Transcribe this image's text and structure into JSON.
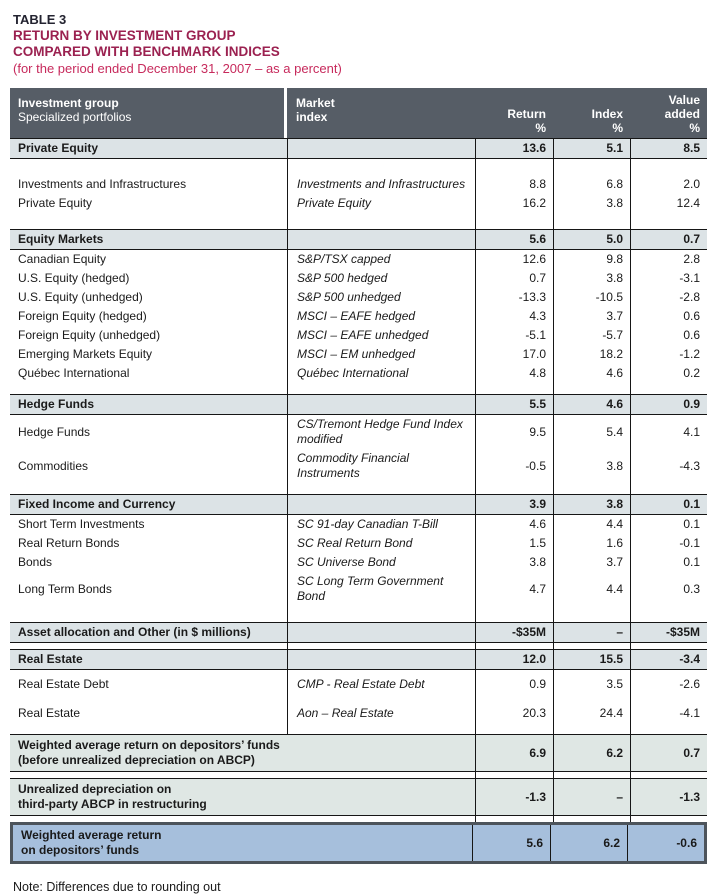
{
  "colors": {
    "header_bg": "#565d66",
    "section_row_bg": "#dce3e6",
    "summary_row_bg": "#dfe7e4",
    "final_row_bg": "#a6bfdc",
    "final_row_border": "#4d545b",
    "title_maroon": "#9b2150",
    "subtitle_crimson": "#c72a5c"
  },
  "title": {
    "table_number": "TABLE 3",
    "line1": "RETURN BY INVESTMENT GROUP",
    "line2": "COMPARED WITH BENCHMARK INDICES",
    "subtitle": "(for the period ended December 31, 2007 – as a percent)"
  },
  "table": {
    "columns": {
      "group_title": "Investment group",
      "group_sub": "Specialized portfolios",
      "market_line1": "Market",
      "market_line2": "index",
      "return_label": "Return",
      "index_label": "Index",
      "value_line1": "Value",
      "value_line2": "added",
      "percent": "%"
    },
    "rows": [
      {
        "type": "section",
        "label": "Private Equity",
        "index": "",
        "ret": "13.6",
        "idx": "5.1",
        "va": "8.5"
      },
      {
        "type": "gap",
        "size": "l"
      },
      {
        "type": "data",
        "label": "Investments and Infrastructures",
        "index": "Investments and Infrastructures",
        "ret": "8.8",
        "idx": "6.8",
        "va": "2.0"
      },
      {
        "type": "data",
        "label": "Private Equity",
        "index": "Private Equity",
        "ret": "16.2",
        "idx": "3.8",
        "va": "12.4"
      },
      {
        "type": "gap",
        "size": "l"
      },
      {
        "type": "section",
        "label": "Equity Markets",
        "index": "",
        "ret": "5.6",
        "idx": "5.0",
        "va": "0.7"
      },
      {
        "type": "data",
        "label": "Canadian Equity",
        "index": "S&P/TSX capped",
        "ret": "12.6",
        "idx": "9.8",
        "va": "2.8"
      },
      {
        "type": "data",
        "label": "U.S. Equity (hedged)",
        "index": "S&P 500 hedged",
        "ret": "0.7",
        "idx": "3.8",
        "va": "-3.1"
      },
      {
        "type": "data",
        "label": "U.S. Equity (unhedged)",
        "index": "S&P 500 unhedged",
        "ret": "-13.3",
        "idx": "-10.5",
        "va": "-2.8"
      },
      {
        "type": "data",
        "label": "Foreign Equity (hedged)",
        "index": "MSCI – EAFE hedged",
        "ret": "4.3",
        "idx": "3.7",
        "va": "0.6"
      },
      {
        "type": "data",
        "label": "Foreign Equity (unhedged)",
        "index": "MSCI – EAFE unhedged",
        "ret": "-5.1",
        "idx": "-5.7",
        "va": "0.6"
      },
      {
        "type": "data",
        "label": "Emerging Markets Equity",
        "index": "MSCI – EM unhedged",
        "ret": "17.0",
        "idx": "18.2",
        "va": "-1.2"
      },
      {
        "type": "data",
        "label": "Québec International",
        "index": "Québec International",
        "ret": "4.8",
        "idx": "4.6",
        "va": "0.2"
      },
      {
        "type": "gap",
        "size": "m"
      },
      {
        "type": "section",
        "label": "Hedge Funds",
        "index": "",
        "ret": "5.5",
        "idx": "4.6",
        "va": "0.9"
      },
      {
        "type": "data",
        "tall": true,
        "label": "Hedge Funds",
        "index": "CS/Tremont Hedge Fund Index modified",
        "ret": "9.5",
        "idx": "5.4",
        "va": "4.1"
      },
      {
        "type": "data",
        "tall": true,
        "label": "Commodities",
        "index": "Commodity Financial Instruments",
        "ret": "-0.5",
        "idx": "3.8",
        "va": "-4.3"
      },
      {
        "type": "gap",
        "size": "m"
      },
      {
        "type": "section",
        "label": "Fixed Income and Currency",
        "index": "",
        "ret": "3.9",
        "idx": "3.8",
        "va": "0.1"
      },
      {
        "type": "data",
        "label": "Short Term Investments",
        "index": "SC 91-day Canadian T-Bill",
        "ret": "4.6",
        "idx": "4.4",
        "va": "0.1"
      },
      {
        "type": "data",
        "label": "Real Return Bonds",
        "index": "SC Real Return Bond",
        "ret": "1.5",
        "idx": "1.6",
        "va": "-0.1"
      },
      {
        "type": "data",
        "label": "Bonds",
        "index": "SC Universe Bond",
        "ret": "3.8",
        "idx": "3.7",
        "va": "0.1"
      },
      {
        "type": "data",
        "label": "Long Term Bonds",
        "index": "SC Long Term Government Bond",
        "ret": "4.7",
        "idx": "4.4",
        "va": "0.3"
      },
      {
        "type": "gap",
        "size": "l"
      },
      {
        "type": "section",
        "label": "Asset allocation and Other (in $ millions)",
        "index": "",
        "ret": "-$35M",
        "idx": "–",
        "va": "-$35M"
      },
      {
        "type": "gap",
        "size": "s"
      },
      {
        "type": "section",
        "label": "Real Estate",
        "index": "",
        "ret": "12.0",
        "idx": "15.5",
        "va": "-3.4"
      },
      {
        "type": "data",
        "tall": true,
        "label": "Real Estate Debt",
        "index": "CMP - Real Estate Debt",
        "ret": "0.9",
        "idx": "3.5",
        "va": "-2.6"
      },
      {
        "type": "data",
        "tall": true,
        "label": "Real Estate",
        "index": "Aon – Real Estate",
        "ret": "20.3",
        "idx": "24.4",
        "va": "-4.1"
      },
      {
        "type": "gap",
        "size": "s"
      },
      {
        "type": "summary",
        "label": [
          "Weighted average return on depositors’ funds",
          "(before unrealized depreciation on ABCP)"
        ],
        "ret": "6.9",
        "idx": "6.2",
        "va": "0.7"
      },
      {
        "type": "gap",
        "size": "s",
        "merged": true
      },
      {
        "type": "summary",
        "label": [
          "Unrealized depreciation on",
          "third-party ABCP in restructuring"
        ],
        "ret": "-1.3",
        "idx": "–",
        "va": "-1.3"
      },
      {
        "type": "gap",
        "size": "s",
        "merged": true
      },
      {
        "type": "final",
        "label": [
          "Weighted average return",
          "on depositors’ funds"
        ],
        "ret": "5.6",
        "idx": "6.2",
        "va": "-0.6"
      }
    ]
  },
  "note": "Note: Differences due to rounding out"
}
